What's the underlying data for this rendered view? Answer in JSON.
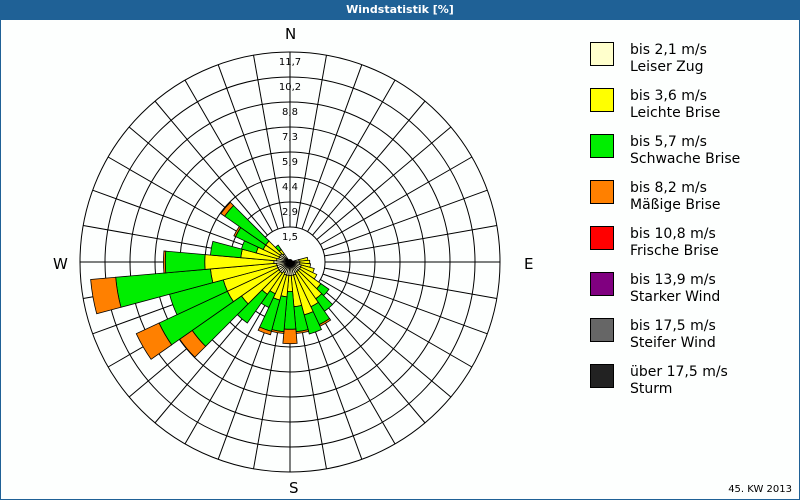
{
  "title": "Windstatistik [%]",
  "footer": "45. KW 2013",
  "compass": {
    "n": "N",
    "e": "E",
    "s": "S",
    "w": "W"
  },
  "chart_data": {
    "type": "wind-rose",
    "title": "Windstatistik [%]",
    "subtitle": "45. KW 2013",
    "ring_labels": [
      "1,5",
      "2,9",
      "4,4",
      "5,9",
      "7,3",
      "8,8",
      "10,2",
      "11,7"
    ],
    "rmax": 11.7,
    "sector_width_deg": 10,
    "legend_position": "right",
    "series": [
      {
        "name": "bis 2,1 m/s Leiser Zug",
        "color": "#ffffcc"
      },
      {
        "name": "bis 3,6 m/s Leichte Brise",
        "color": "#ffff00"
      },
      {
        "name": "bis 5,7 m/s Schwache Brise",
        "color": "#00ee00"
      },
      {
        "name": "bis 8,2 m/s Mäßige Brise",
        "color": "#ff8000"
      },
      {
        "name": "bis 10,8 m/s Frische Brise",
        "color": "#ff0000"
      },
      {
        "name": "bis 13,9 m/s Starker Wind",
        "color": "#800080"
      },
      {
        "name": "bis 17,5 m/s Steifer Wind",
        "color": "#666666"
      },
      {
        "name": "über 17,5 m/s Sturm",
        "color": "#222222"
      }
    ],
    "sectors": [
      {
        "dir": 80,
        "values": [
          0.5,
          0.5,
          0,
          0
        ]
      },
      {
        "dir": 90,
        "values": [
          0.55,
          0.55,
          0,
          0
        ]
      },
      {
        "dir": 100,
        "values": [
          0.55,
          0.6,
          0,
          0
        ]
      },
      {
        "dir": 110,
        "values": [
          0.65,
          0.75,
          0,
          0
        ]
      },
      {
        "dir": 120,
        "values": [
          0.65,
          1.0,
          0,
          0
        ]
      },
      {
        "dir": 130,
        "values": [
          0.65,
          1.45,
          0.55,
          0
        ]
      },
      {
        "dir": 140,
        "values": [
          0.65,
          1.85,
          0.85,
          0
        ]
      },
      {
        "dir": 150,
        "values": [
          0.65,
          2.1,
          1.1,
          0.1
        ]
      },
      {
        "dir": 160,
        "values": [
          0.75,
          2.3,
          1.1,
          0
        ]
      },
      {
        "dir": 170,
        "values": [
          0.75,
          1.75,
          1.4,
          0.1
        ]
      },
      {
        "dir": 180,
        "values": [
          0.75,
          0.9,
          2.1,
          0.8
        ]
      },
      {
        "dir": 190,
        "values": [
          0.75,
          1.2,
          1.95,
          0.1
        ]
      },
      {
        "dir": 200,
        "values": [
          0.75,
          1.45,
          1.8,
          0.2
        ]
      },
      {
        "dir": 210,
        "values": [
          0.65,
          1.3,
          0.85,
          0
        ]
      },
      {
        "dir": 220,
        "values": [
          0.75,
          1.45,
          1.95,
          0
        ]
      },
      {
        "dir": 230,
        "values": [
          0.75,
          2.55,
          3.35,
          0.85
        ]
      },
      {
        "dir": 240,
        "values": [
          0.75,
          3.1,
          4.2,
          1.4
        ]
      },
      {
        "dir": 250,
        "values": [
          0.75,
          3.1,
          3.1,
          0
        ]
      },
      {
        "dir": 260,
        "values": [
          0.75,
          3.7,
          5.3,
          1.4
        ]
      },
      {
        "dir": 270,
        "values": [
          0.9,
          3.85,
          2.2,
          0.1
        ]
      },
      {
        "dir": 280,
        "values": [
          0.75,
          2.0,
          1.7,
          0
        ]
      },
      {
        "dir": 290,
        "values": [
          0.65,
          1.3,
          0.85,
          0
        ]
      },
      {
        "dir": 300,
        "values": [
          0.65,
          1.0,
          1.7,
          0.1
        ]
      },
      {
        "dir": 310,
        "values": [
          0.65,
          1.0,
          2.8,
          0.25
        ]
      },
      {
        "dir": 320,
        "values": [
          0.55,
          0.3,
          0.3,
          0
        ]
      }
    ]
  },
  "legend": [
    {
      "line1": "bis 2,1 m/s",
      "line2": "Leiser Zug",
      "color": "#ffffcc"
    },
    {
      "line1": "bis 3,6 m/s",
      "line2": "Leichte Brise",
      "color": "#ffff00"
    },
    {
      "line1": "bis 5,7 m/s",
      "line2": "Schwache Brise",
      "color": "#00ee00"
    },
    {
      "line1": "bis 8,2 m/s",
      "line2": "Mäßige Brise",
      "color": "#ff8000"
    },
    {
      "line1": "bis 10,8 m/s",
      "line2": "Frische Brise",
      "color": "#ff0000"
    },
    {
      "line1": "bis 13,9 m/s",
      "line2": "Starker Wind",
      "color": "#800080"
    },
    {
      "line1": "bis 17,5 m/s",
      "line2": "Steifer Wind",
      "color": "#666666"
    },
    {
      "line1": "über 17,5 m/s",
      "line2": "Sturm",
      "color": "#222222"
    }
  ]
}
